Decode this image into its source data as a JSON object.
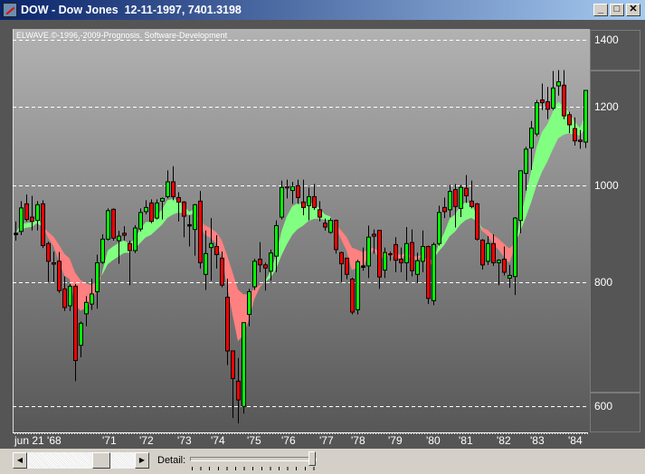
{
  "window": {
    "title": "DOW - Dow Jones  12-11-1997, 7401.3198",
    "minimize_glyph": "_",
    "maximize_glyph": "□",
    "close_glyph": "✕"
  },
  "copyright": "ELWAVE.©-1996,-2009-Prognosis. Software-Development",
  "controls": {
    "scroll_left_glyph": "◀",
    "scroll_right_glyph": "▶",
    "detail_label": "Detail:",
    "detail_level": 1.0
  },
  "colors": {
    "up": "#00ff00",
    "down": "#ff0000",
    "cloud_up": "#80ff80",
    "cloud_down": "#ff8080",
    "grid": "#ffffff"
  },
  "chart_data": {
    "type": "candlestick",
    "y_scale": "log",
    "ylim": [
      565,
      1435
    ],
    "y_ticks": [
      1400,
      1200,
      1000,
      800,
      600
    ],
    "y_tick_labels": [
      "1400",
      "1200",
      "1000",
      "800",
      "600"
    ],
    "x_tick_labels": [
      "jun 21 '68",
      "'71",
      "'72",
      "'73",
      "'74",
      "'75",
      "'76",
      "'77",
      "'78",
      "'79",
      "'80",
      "'81",
      "'82",
      "'83",
      "'84"
    ],
    "grid": "horizontal dashed",
    "overlay": "moving-average cloud (green when rising, red when falling)",
    "ohlc": [
      [
        895,
        920,
        880,
        895
      ],
      [
        899,
        964,
        891,
        949
      ],
      [
        958,
        979,
        920,
        924
      ],
      [
        929,
        976,
        901,
        920
      ],
      [
        922,
        964,
        901,
        956
      ],
      [
        958,
        966,
        865,
        870
      ],
      [
        874,
        878,
        800,
        839
      ],
      [
        836,
        858,
        800,
        834
      ],
      [
        839,
        857,
        780,
        784
      ],
      [
        787,
        810,
        748,
        754
      ],
      [
        757,
        796,
        748,
        792
      ],
      [
        792,
        796,
        636,
        667
      ],
      [
        691,
        730,
        672,
        727
      ],
      [
        743,
        774,
        722,
        763
      ],
      [
        760,
        806,
        750,
        778
      ],
      [
        782,
        852,
        752,
        836
      ],
      [
        837,
        893,
        834,
        883
      ],
      [
        883,
        948,
        880,
        943
      ],
      [
        946,
        948,
        880,
        885
      ],
      [
        880,
        900,
        834,
        889
      ],
      [
        895,
        910,
        880,
        891
      ],
      [
        874,
        880,
        794,
        860
      ],
      [
        860,
        912,
        855,
        906
      ],
      [
        904,
        948,
        899,
        939
      ],
      [
        941,
        966,
        935,
        950
      ],
      [
        960,
        968,
        916,
        920
      ],
      [
        927,
        968,
        924,
        960
      ],
      [
        964,
        972,
        924,
        970
      ],
      [
        974,
        1035,
        970,
        1008
      ],
      [
        1008,
        1045,
        966,
        974
      ],
      [
        972,
        984,
        920,
        962
      ],
      [
        962,
        964,
        887,
        931
      ],
      [
        913,
        933,
        868,
        913
      ],
      [
        903,
        958,
        850,
        956
      ],
      [
        964,
        987,
        825,
        836
      ],
      [
        814,
        901,
        785,
        854
      ],
      [
        866,
        927,
        802,
        874
      ],
      [
        868,
        891,
        825,
        852
      ],
      [
        845,
        858,
        790,
        794
      ],
      [
        772,
        806,
        660,
        682
      ],
      [
        682,
        682,
        584,
        640
      ],
      [
        636,
        671,
        577,
        609
      ],
      [
        600,
        728,
        590,
        728
      ],
      [
        742,
        787,
        722,
        782
      ],
      [
        791,
        844,
        785,
        839
      ],
      [
        843,
        877,
        818,
        832
      ],
      [
        832,
        836,
        784,
        826
      ],
      [
        820,
        862,
        802,
        855
      ],
      [
        849,
        922,
        818,
        911
      ],
      [
        929,
        1011,
        924,
        995
      ],
      [
        997,
        1013,
        970,
        995
      ],
      [
        988,
        1008,
        958,
        997
      ],
      [
        999,
        1013,
        958,
        972
      ],
      [
        962,
        1013,
        933,
        950
      ],
      [
        954,
        995,
        922,
        974
      ],
      [
        974,
        1003,
        945,
        950
      ],
      [
        945,
        964,
        920,
        929
      ],
      [
        916,
        926,
        901,
        908
      ],
      [
        897,
        927,
        894,
        922
      ],
      [
        922,
        924,
        854,
        862
      ],
      [
        856,
        858,
        800,
        834
      ],
      [
        845,
        846,
        805,
        814
      ],
      [
        805,
        808,
        742,
        746
      ],
      [
        750,
        842,
        742,
        838
      ],
      [
        830,
        866,
        821,
        830
      ],
      [
        830,
        911,
        807,
        887
      ],
      [
        893,
        903,
        854,
        889
      ],
      [
        901,
        901,
        787,
        809
      ],
      [
        822,
        866,
        807,
        856
      ],
      [
        854,
        858,
        840,
        854
      ],
      [
        872,
        887,
        818,
        841
      ],
      [
        843,
        866,
        818,
        836
      ],
      [
        836,
        908,
        802,
        874
      ],
      [
        876,
        903,
        810,
        821
      ],
      [
        814,
        856,
        798,
        840
      ],
      [
        839,
        901,
        818,
        868
      ],
      [
        868,
        870,
        760,
        770
      ],
      [
        766,
        876,
        758,
        872
      ],
      [
        874,
        954,
        870,
        939
      ],
      [
        950,
        972,
        927,
        941
      ],
      [
        945,
        1001,
        929,
        986
      ],
      [
        990,
        1003,
        907,
        952
      ],
      [
        948,
        1001,
        929,
        995
      ],
      [
        993,
        1024,
        960,
        976
      ],
      [
        964,
        1011,
        948,
        952
      ],
      [
        958,
        960,
        880,
        883
      ],
      [
        881,
        883,
        823,
        832
      ],
      [
        839,
        889,
        832,
        874
      ],
      [
        874,
        893,
        830,
        836
      ],
      [
        836,
        843,
        794,
        841
      ],
      [
        843,
        868,
        812,
        818
      ],
      [
        807,
        832,
        789,
        812
      ],
      [
        810,
        929,
        776,
        927
      ],
      [
        922,
        1034,
        895,
        1034
      ],
      [
        1028,
        1093,
        988,
        1087
      ],
      [
        1090,
        1160,
        1036,
        1141
      ],
      [
        1126,
        1218,
        1120,
        1210
      ],
      [
        1218,
        1265,
        1190,
        1210
      ],
      [
        1213,
        1255,
        1165,
        1192
      ],
      [
        1195,
        1302,
        1190,
        1252
      ],
      [
        1258,
        1305,
        1230,
        1270
      ],
      [
        1260,
        1305,
        1165,
        1174
      ],
      [
        1177,
        1185,
        1128,
        1150
      ],
      [
        1140,
        1170,
        1096,
        1108
      ],
      [
        1110,
        1136,
        1088,
        1108
      ],
      [
        1105,
        1245,
        1090,
        1245
      ]
    ]
  }
}
